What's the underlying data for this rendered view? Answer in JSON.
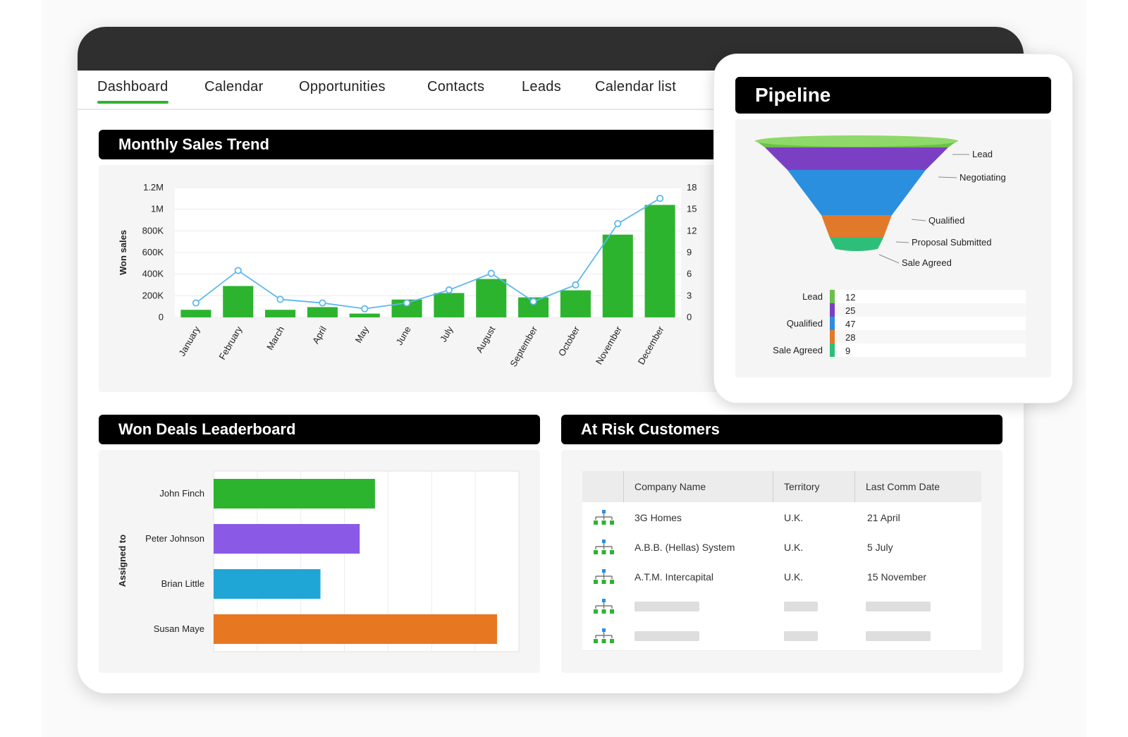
{
  "tabs": [
    "Dashboard",
    "Calendar",
    "Opportunities",
    "Contacts",
    "Leads",
    "Calendar list"
  ],
  "active_tab": "Dashboard",
  "sections": {
    "monthly": "Monthly Sales Trend",
    "leaderboard": "Won Deals Leaderboard",
    "at_risk": "At Risk Customers",
    "pipeline": "Pipeline"
  },
  "colors": {
    "green": "#2db42f",
    "line": "#5bb8f0",
    "purple": "#8a5ae6",
    "blue": "#1fa6d6",
    "orange": "#e87722",
    "lead": "#6cc04a",
    "negotiating": "#7b3fc4",
    "qualified": "#2b8fe0",
    "proposal": "#e07a2a",
    "sale_agreed": "#2dbf7a"
  },
  "chart_data": [
    {
      "type": "bar",
      "title": "Monthly Sales Trend",
      "ylabel": "Won sales",
      "categories": [
        "January",
        "February",
        "March",
        "April",
        "May",
        "June",
        "July",
        "August",
        "September",
        "October",
        "November",
        "December"
      ],
      "y_ticks": [
        "0",
        "200K",
        "400K",
        "600K",
        "800K",
        "1M",
        "1.2M"
      ],
      "y2_ticks": [
        "0",
        "3",
        "6",
        "9",
        "12",
        "15",
        "18"
      ],
      "ylim": [
        0,
        1200000
      ],
      "y2lim": [
        0,
        18
      ],
      "series": [
        {
          "type": "bar",
          "values": [
            70000,
            290000,
            70000,
            95000,
            35000,
            165000,
            225000,
            355000,
            185000,
            250000,
            765000,
            1040000
          ]
        },
        {
          "type": "line",
          "axis": "right",
          "values": [
            2,
            6.5,
            2.5,
            2,
            1.2,
            2,
            3.8,
            6.1,
            2.2,
            4.5,
            13,
            16.5
          ]
        }
      ]
    },
    {
      "type": "bar",
      "orientation": "horizontal",
      "title": "Won Deals Leaderboard",
      "ylabel": "Assigned to",
      "categories": [
        "John Finch",
        "Peter Johnson",
        "Brian Little",
        "Susan Maye"
      ],
      "values": [
        3.7,
        3.35,
        2.45,
        6.5
      ],
      "xlim": [
        0,
        7
      ],
      "bar_colors": [
        "#2db42f",
        "#8a5ae6",
        "#1fa6d6",
        "#e87722"
      ]
    },
    {
      "type": "funnel",
      "title": "Pipeline",
      "stages": [
        "Lead",
        "Negotiating",
        "Qualified",
        "Proposal Submitted",
        "Sale Agreed"
      ],
      "values": [
        12,
        25,
        47,
        28,
        9
      ]
    }
  ],
  "pipeline_table": {
    "labels": [
      "Lead",
      "",
      "Qualified",
      "",
      "Sale Agreed"
    ],
    "values": [
      "12",
      "25",
      "47",
      "28",
      "9"
    ]
  },
  "at_risk_table": {
    "headers": [
      "Company Name",
      "Territory",
      "Last Comm Date"
    ],
    "rows": [
      [
        "3G Homes",
        "U.K.",
        "21 April"
      ],
      [
        "A.B.B. (Hellas) System",
        "U.K.",
        "5 July"
      ],
      [
        "A.T.M. Intercapital",
        "U.K.",
        "15 November"
      ]
    ],
    "placeholder_rows": 2
  }
}
